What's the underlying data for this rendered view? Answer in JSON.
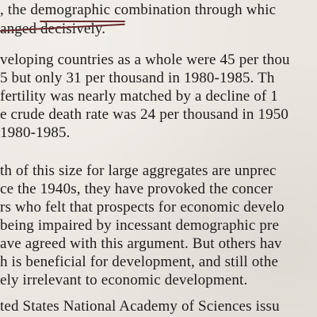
{
  "document": {
    "lines": [
      ", the demographic combination through whic",
      "anged decisively.",
      "veloping countries as a whole were 45 per thou",
      "5 but only 31 per thousand in 1980-1985. Th",
      " fertility was nearly matched by a decline of 1",
      "e crude death rate was 24 per thousand in 1950",
      "1980-1985.",
      "",
      "th of this size for large aggregates are unprec",
      "ce the 1940s,  they have provoked the concer",
      "rs who felt that prospects for economic develo",
      "being impaired by incessant demographic pre",
      "ave agreed with this argument. But others hav",
      "h is beneficial for development, and still othe",
      "ely irrelevant to economic development.",
      "",
      "ted States National Academy of Sciences issu"
    ]
  }
}
